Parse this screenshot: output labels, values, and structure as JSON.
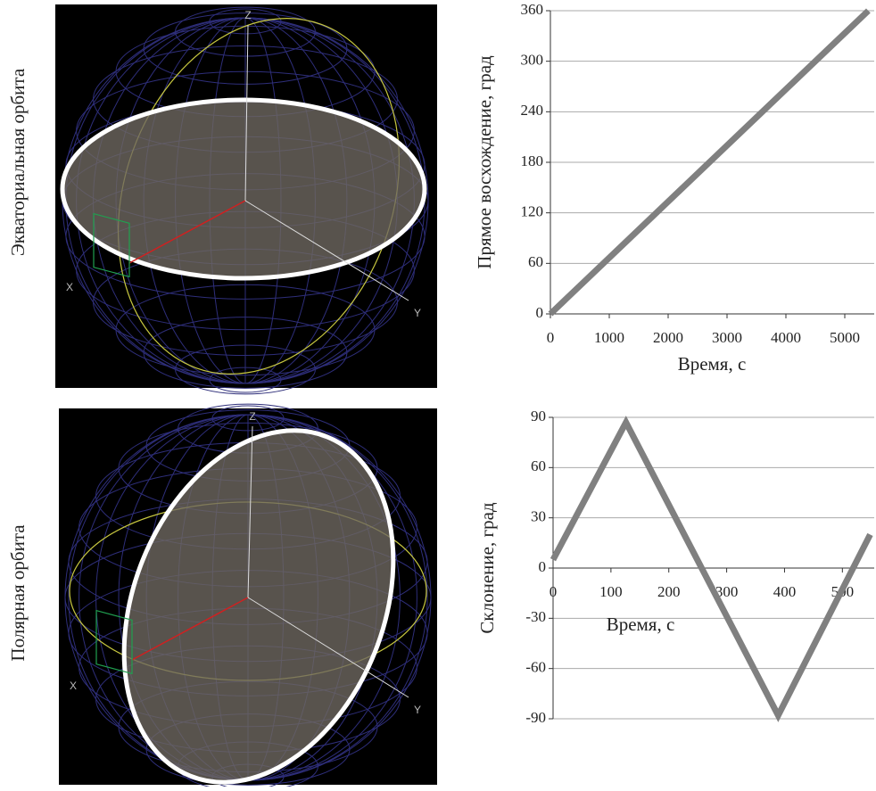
{
  "panels": [
    {
      "label": "Экваториальная орбита"
    },
    {
      "label": "Полярная орбита"
    }
  ],
  "scene_axes": {
    "x": "X",
    "y": "Y",
    "z": "Z"
  },
  "chart_data": [
    {
      "type": "line",
      "ylabel": "Прямое восхождение, град",
      "xlabel": "Время, с",
      "series": [
        {
          "color": "#808080",
          "x": [
            0,
            5400
          ],
          "values": [
            0,
            360
          ]
        }
      ],
      "xlim": [
        0,
        5500
      ],
      "xticks": [
        0,
        1000,
        2000,
        3000,
        4000,
        5000
      ],
      "ylim": [
        0,
        360
      ],
      "yticks": [
        0,
        60,
        120,
        180,
        240,
        300,
        360
      ],
      "grid": true
    },
    {
      "type": "line",
      "ylabel": "Склонение, град",
      "xlabel": "Время, с",
      "series": [
        {
          "color": "#808080",
          "x": [
            0,
            126,
            389,
            548
          ],
          "values": [
            5,
            87,
            -88,
            20
          ]
        }
      ],
      "xlim": [
        0,
        555
      ],
      "xticks": [
        0,
        100,
        200,
        300,
        400,
        500
      ],
      "ylim": [
        -90,
        90
      ],
      "yticks": [
        -90,
        -60,
        -30,
        0,
        30,
        60,
        90
      ],
      "grid": true
    }
  ]
}
